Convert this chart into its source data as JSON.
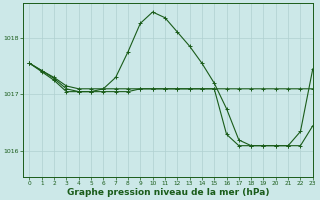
{
  "background_color": "#cce8e8",
  "grid_color": "#b0d0d0",
  "line_color": "#1a5c1a",
  "marker_color": "#1a5c1a",
  "xlabel": "Graphe pression niveau de la mer (hPa)",
  "xlabel_fontsize": 6.5,
  "xlim": [
    -0.5,
    23
  ],
  "ylim": [
    1015.55,
    1018.6
  ],
  "yticks": [
    1016,
    1017,
    1018
  ],
  "xticks": [
    0,
    1,
    2,
    3,
    4,
    5,
    6,
    7,
    8,
    9,
    10,
    11,
    12,
    13,
    14,
    15,
    16,
    17,
    18,
    19,
    20,
    21,
    22,
    23
  ],
  "series": [
    {
      "x": [
        0,
        1,
        2,
        3,
        4,
        5,
        6,
        7,
        8,
        9,
        10,
        11,
        12,
        13,
        14,
        15,
        16,
        17,
        18,
        19,
        20,
        21,
        22,
        23
      ],
      "y": [
        1017.55,
        1017.42,
        1017.3,
        1017.15,
        1017.1,
        1017.1,
        1017.1,
        1017.1,
        1017.1,
        1017.1,
        1017.1,
        1017.1,
        1017.1,
        1017.1,
        1017.1,
        1017.1,
        1017.1,
        1017.1,
        1017.1,
        1017.1,
        1017.1,
        1017.1,
        1017.1,
        1017.1
      ]
    },
    {
      "x": [
        0,
        1,
        2,
        3,
        4,
        5,
        6,
        7,
        8,
        9,
        10,
        11,
        12,
        13,
        14,
        15,
        16,
        17,
        18,
        19,
        20,
        21,
        22,
        23
      ],
      "y": [
        1017.55,
        1017.42,
        1017.28,
        1017.1,
        1017.05,
        1017.05,
        1017.05,
        1017.05,
        1017.05,
        1017.1,
        1017.1,
        1017.1,
        1017.1,
        1017.1,
        1017.1,
        1017.1,
        1016.3,
        1016.1,
        1016.1,
        1016.1,
        1016.1,
        1016.1,
        1016.1,
        1016.45
      ]
    },
    {
      "x": [
        0,
        1,
        2,
        3,
        4,
        5,
        6,
        7,
        8,
        9,
        10,
        11,
        12,
        13,
        14,
        15,
        16,
        17,
        18,
        19,
        20,
        21,
        22,
        23
      ],
      "y": [
        1017.55,
        1017.4,
        1017.25,
        1017.05,
        1017.05,
        1017.05,
        1017.1,
        1017.3,
        1017.75,
        1018.25,
        1018.45,
        1018.35,
        1018.1,
        1017.85,
        1017.55,
        1017.2,
        1016.75,
        1016.2,
        1016.1,
        1016.1,
        1016.1,
        1016.1,
        1016.35,
        1017.45
      ]
    }
  ]
}
